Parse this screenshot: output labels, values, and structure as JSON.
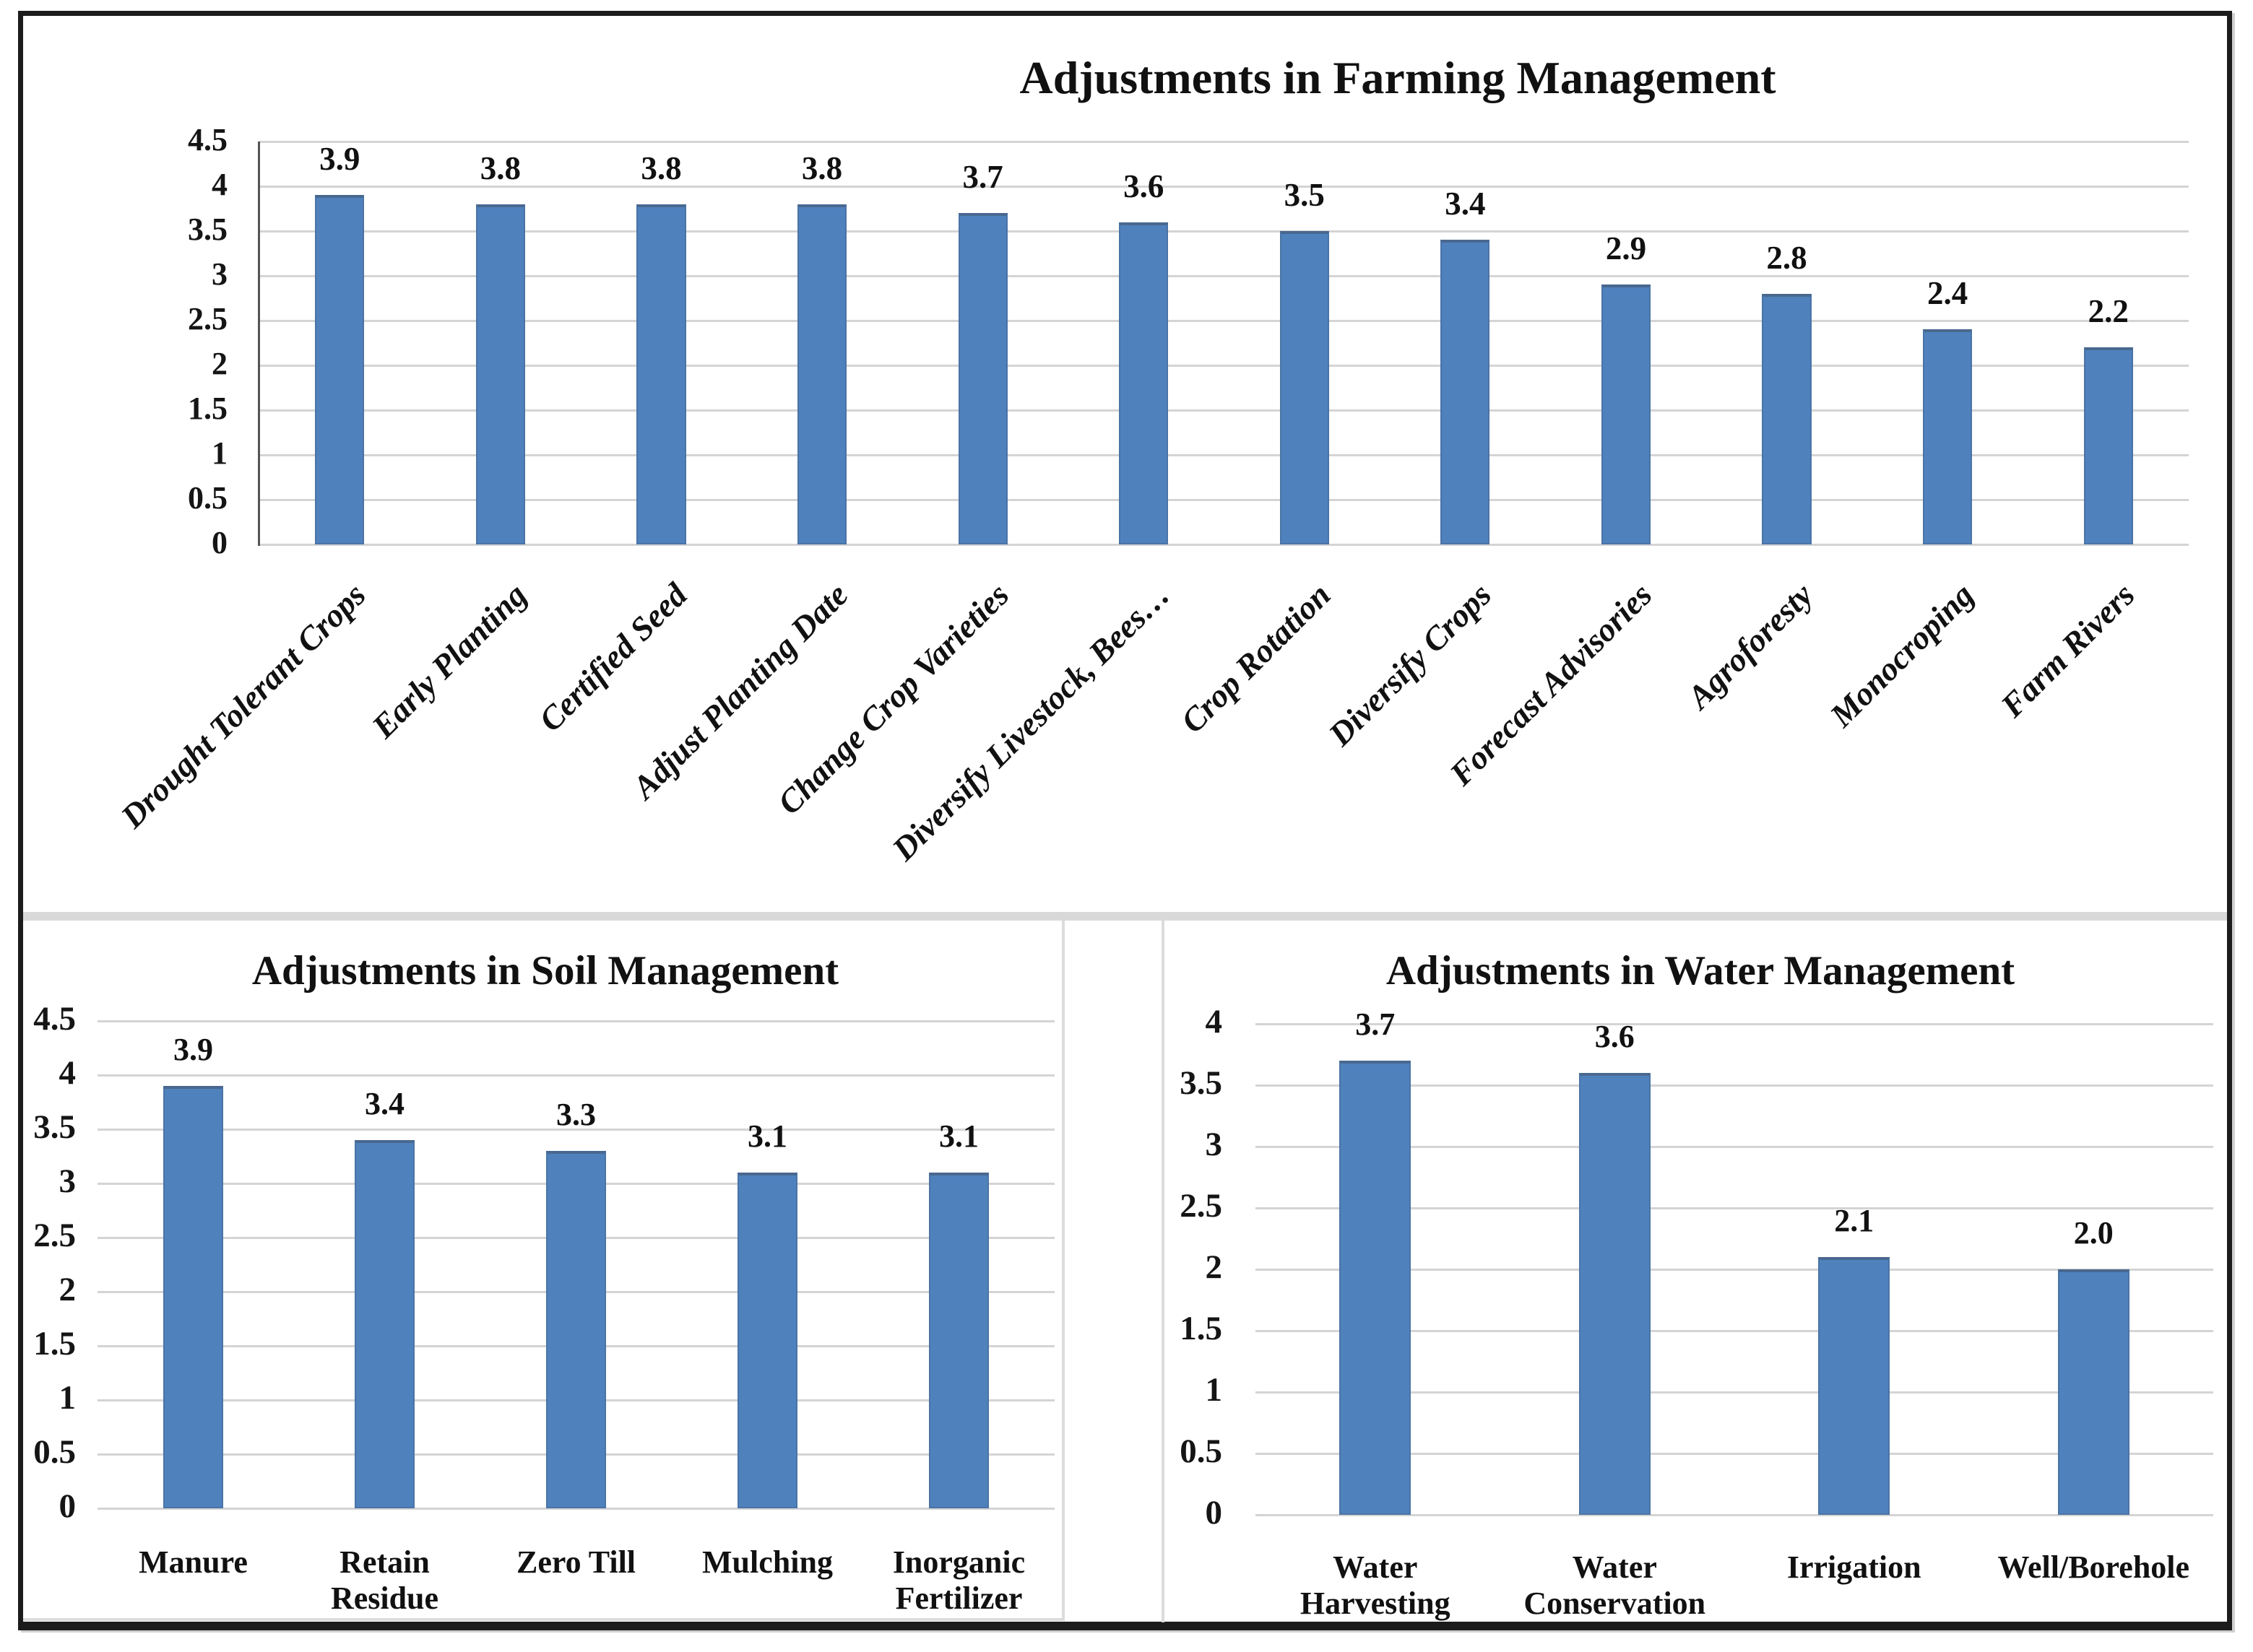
{
  "figure": {
    "background": "#ffffff",
    "frame_color": "#1c1c1c",
    "divider_color": "#d9d9d9",
    "bar_color": "#4f81bd",
    "gridline_color": "#d4d4d4"
  },
  "chart_data": [
    {
      "type": "bar",
      "title": "Adjustments in Farming Management",
      "categories": [
        "Drought Tolerant Crops",
        "Early Planting",
        "Certified Seed",
        "Adjust Planting Date",
        "Change Crop Varieties",
        "Diversify Livestock, Bees…",
        "Crop Rotation",
        "Diversify Crops",
        "Forecast Advisories",
        "Agroforesty",
        "Monocroping",
        "Farm Rivers"
      ],
      "category_lines": [
        "Drought Tolerant Crops",
        "Early Planting",
        "Certified Seed",
        "Adjust Planting Date",
        "Change Crop Varieties",
        "Diversify Livestock, Bees…",
        "Crop Rotation",
        "Diversify Crops",
        "Forecast Advisories",
        "Agroforesty",
        "Monocroping",
        "Farm Rivers"
      ],
      "values": [
        3.9,
        3.8,
        3.8,
        3.8,
        3.7,
        3.6,
        3.5,
        3.4,
        2.9,
        2.8,
        2.4,
        2.2
      ],
      "value_labels": [
        "3.9",
        "3.8",
        "3.8",
        "3.8",
        "3.7",
        "3.6",
        "3.5",
        "3.4",
        "2.9",
        "2.8",
        "2.4",
        "2.2"
      ],
      "ylim": [
        0,
        4.5
      ],
      "ytick_step": 0.5,
      "yticks": [
        "4.5",
        "4",
        "3.5",
        "3",
        "2.5",
        "2",
        "1.5",
        "1",
        "0.5",
        "0"
      ],
      "xlabel_rotation_deg": 45,
      "grid": true,
      "legend": false,
      "bar_color": "#4f81bd"
    },
    {
      "type": "bar",
      "title": "Adjustments in Soil Management",
      "categories": [
        "Manure",
        "Retain Residue",
        "Zero Till",
        "Mulching",
        "Inorganic Fertilizer"
      ],
      "category_lines": [
        "Manure",
        "Retain\nResidue",
        "Zero Till",
        "Mulching",
        "Inorganic\nFertilizer"
      ],
      "values": [
        3.9,
        3.4,
        3.3,
        3.1,
        3.1
      ],
      "value_labels": [
        "3.9",
        "3.4",
        "3.3",
        "3.1",
        "3.1"
      ],
      "ylim": [
        0,
        4.5
      ],
      "ytick_step": 0.5,
      "yticks": [
        "4.5",
        "4",
        "3.5",
        "3",
        "2.5",
        "2",
        "1.5",
        "1",
        "0.5",
        "0"
      ],
      "xlabel_rotation_deg": 0,
      "grid": true,
      "legend": false,
      "bar_color": "#4f81bd"
    },
    {
      "type": "bar",
      "title": "Adjustments in Water Management",
      "categories": [
        "Water Harvesting",
        "Water Conservation",
        "Irrigation",
        "Well/Borehole"
      ],
      "category_lines": [
        "Water\nHarvesting",
        "Water\nConservation",
        "Irrigation",
        "Well/Borehole"
      ],
      "values": [
        3.7,
        3.6,
        2.1,
        2.0
      ],
      "value_labels": [
        "3.7",
        "3.6",
        "2.1",
        "2.0"
      ],
      "ylim": [
        0,
        4
      ],
      "ytick_step": 0.5,
      "yticks": [
        "4",
        "3.5",
        "3",
        "2.5",
        "2",
        "1.5",
        "1",
        "0.5",
        "0"
      ],
      "xlabel_rotation_deg": 0,
      "grid": true,
      "legend": false,
      "bar_color": "#4f81bd"
    }
  ]
}
